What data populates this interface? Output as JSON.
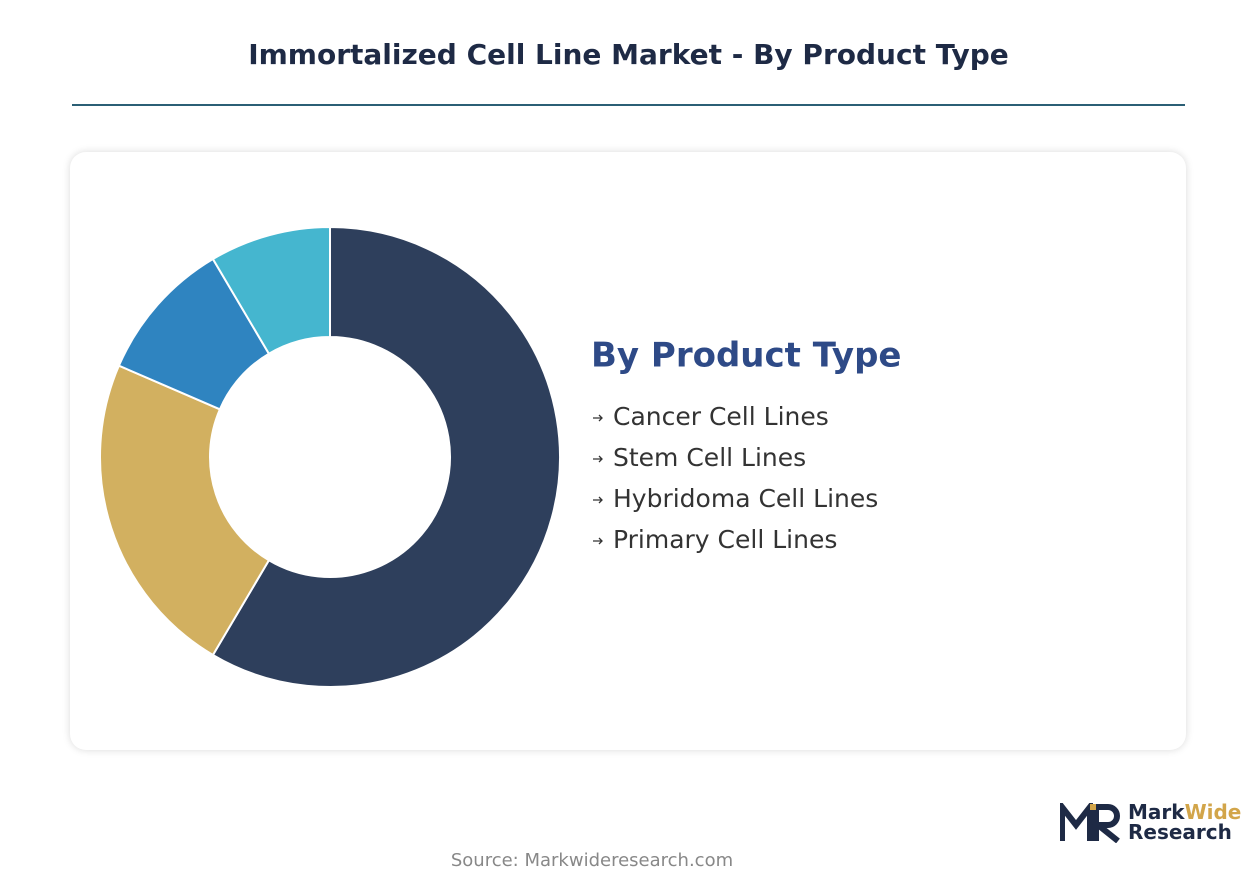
{
  "chart_data": {
    "type": "pie",
    "title": "Immortalized Cell Line Market - By Product Type",
    "legend_title": "By Product Type",
    "categories": [
      "Cancer Cell Lines",
      "Stem Cell Lines",
      "Hybridoma Cell Lines",
      "Primary Cell Lines"
    ],
    "values": [
      58.5,
      23,
      10,
      8.5
    ],
    "colors": [
      "#2e3f5c",
      "#d2b060",
      "#2f84c0",
      "#45b6cf"
    ],
    "donut": true
  },
  "source": "Source: Markwideresearch.com",
  "logo": {
    "mark": "Mark",
    "wide": "Wide",
    "research": "Research"
  }
}
